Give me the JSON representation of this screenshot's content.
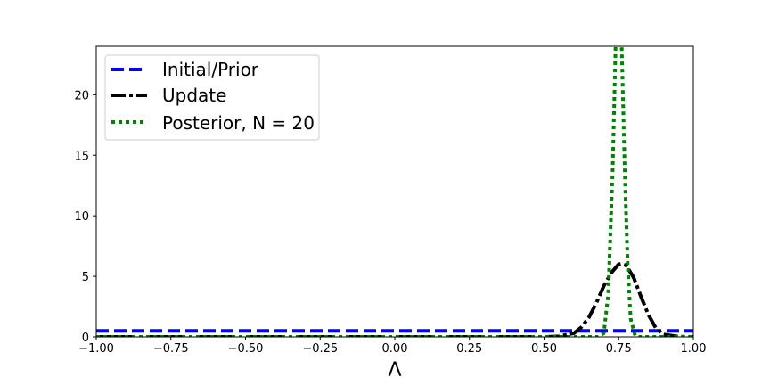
{
  "chart_data": {
    "type": "line",
    "xlabel": "Λ",
    "ylabel": "",
    "xlim": [
      -1.0,
      1.0
    ],
    "ylim": [
      0,
      24
    ],
    "x_ticks": [
      "−1.00",
      "−0.75",
      "−0.50",
      "−0.25",
      "0.00",
      "0.25",
      "0.50",
      "0.75",
      "1.00"
    ],
    "x_tick_values": [
      -1.0,
      -0.75,
      -0.5,
      -0.25,
      0.0,
      0.25,
      0.5,
      0.75,
      1.0
    ],
    "y_ticks": [
      "0",
      "5",
      "10",
      "15",
      "20"
    ],
    "y_tick_values": [
      0,
      5,
      10,
      15,
      20
    ],
    "grid": false,
    "legend_position": "top-left",
    "series": [
      {
        "name": "Initial/Prior",
        "color": "#0000ff",
        "style": "dashed",
        "x": [
          -1.0,
          1.0
        ],
        "y": [
          0.5,
          0.5
        ]
      },
      {
        "name": "Update",
        "color": "#000000",
        "style": "dashdot",
        "x": [
          -1.0,
          0.5,
          0.55,
          0.6,
          0.625,
          0.65,
          0.675,
          0.7,
          0.725,
          0.75,
          0.76,
          0.775,
          0.8,
          0.825,
          0.85,
          0.875,
          0.9,
          0.95,
          1.0
        ],
        "y": [
          0.0,
          0.0,
          0.05,
          0.3,
          0.8,
          1.6,
          2.8,
          4.2,
          5.3,
          6.0,
          6.05,
          5.9,
          4.9,
          3.3,
          1.8,
          0.7,
          0.2,
          0.02,
          0.0
        ]
      },
      {
        "name": "Posterior, N = 20",
        "color": "#008000",
        "style": "dotted",
        "x": [
          -1.0,
          0.68,
          0.7,
          0.715,
          0.73,
          0.74,
          0.75,
          0.76,
          0.77,
          0.78,
          0.79,
          0.805,
          0.82,
          1.0
        ],
        "y": [
          0.0,
          0.0,
          0.3,
          3.5,
          14.0,
          24.5,
          27.0,
          24.0,
          14.0,
          6.0,
          1.5,
          0.1,
          0.0,
          0.0
        ]
      }
    ]
  }
}
